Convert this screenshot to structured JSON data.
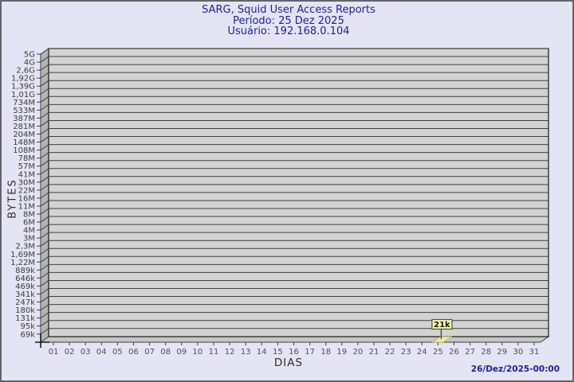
{
  "header": {
    "title": "SARG, Squid User Access Reports",
    "period_line": "Período: 25 Dez 2025",
    "user_line": "Usuário: 192.168.0.104"
  },
  "footer": {
    "timestamp": "26/Dez/2025-00:00"
  },
  "chart_data": {
    "type": "bar",
    "title": "SARG, Squid User Access Reports",
    "subtitle": "Período: 25 Dez 2025",
    "user_line": "Usuário: 192.168.0.104",
    "xlabel": "DIAS",
    "ylabel": "BYTES",
    "y_ticks": [
      "5G",
      "4G",
      "2,6G",
      "1,92G",
      "1,39G",
      "1,01G",
      "734M",
      "533M",
      "387M",
      "281M",
      "204M",
      "148M",
      "108M",
      "78M",
      "57M",
      "41M",
      "30M",
      "22M",
      "16M",
      "11M",
      "8M",
      "6M",
      "4M",
      "3M",
      "2,3M",
      "1,69M",
      "1,22M",
      "889k",
      "646k",
      "469k",
      "341k",
      "247k",
      "180k",
      "131k",
      "95k",
      "69k"
    ],
    "x_ticks": [
      "01",
      "02",
      "03",
      "04",
      "05",
      "06",
      "07",
      "08",
      "09",
      "10",
      "11",
      "12",
      "13",
      "14",
      "15",
      "16",
      "17",
      "18",
      "19",
      "20",
      "21",
      "22",
      "23",
      "24",
      "25",
      "26",
      "27",
      "28",
      "29",
      "30",
      "31"
    ],
    "bars": [
      {
        "day": "25",
        "value_label": "21k"
      }
    ],
    "axis_range_note": "log-like byte scale from 69k to 5G; bar value 21k is below axis minimum",
    "grid": true,
    "legend": "none",
    "colors": {
      "background": "#e4e4f4",
      "plot_bg": "#d3d3d3",
      "wall": "#b5b5b5",
      "floor": "#c6c6c6",
      "grid_line": "#3f3f3f",
      "frame_line": "#1a1a1a",
      "y_tick_text": "#3d3d3d",
      "x_tick_text": "#4f4f4f",
      "bar_fill": "#f0e9a6",
      "bar_edge": "#b8ae62",
      "value_box_fill": "#f6f2ba",
      "value_box_border": "#55552a",
      "value_text": "#1a1a00",
      "title_color": "#2121a3"
    }
  }
}
